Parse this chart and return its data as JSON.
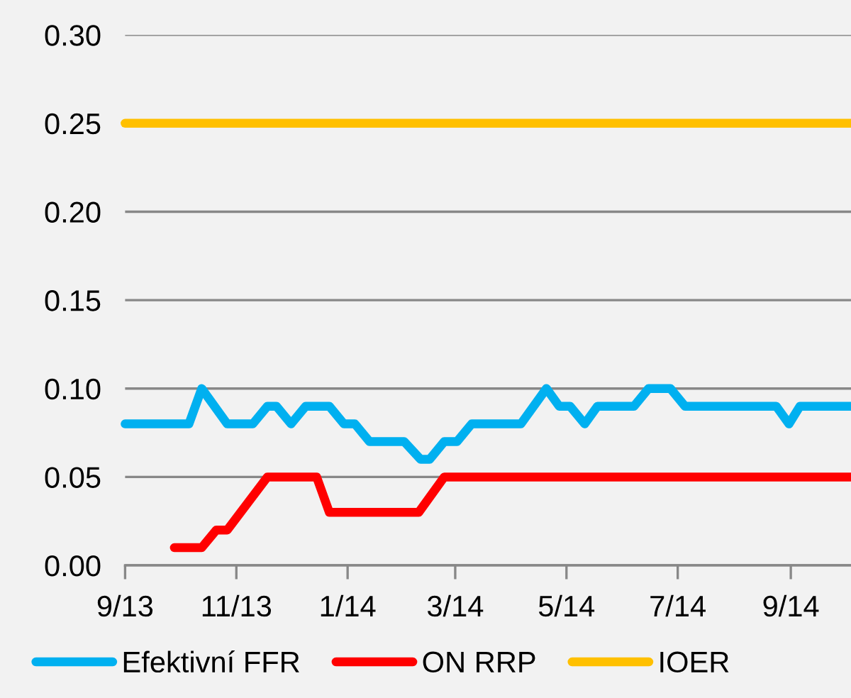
{
  "chart_data": {
    "type": "line",
    "legend": "bottom",
    "grid": "y",
    "marker": "none",
    "line_style": "solid",
    "xlim": [
      "2013-09-01",
      "2014-10-04"
    ],
    "xticks": [
      {
        "value": "2013-09-01",
        "label": "9/13"
      },
      {
        "value": "2013-11-01",
        "label": "11/13"
      },
      {
        "value": "2014-01-01",
        "label": "1/14"
      },
      {
        "value": "2014-03-01",
        "label": "3/14"
      },
      {
        "value": "2014-05-01",
        "label": "5/14"
      },
      {
        "value": "2014-07-01",
        "label": "7/14"
      },
      {
        "value": "2014-09-01",
        "label": "9/14"
      }
    ],
    "ylim": [
      0,
      0.3
    ],
    "yticks": [
      {
        "value": 0,
        "label": "0.00"
      },
      {
        "value": 0.05,
        "label": "0.05"
      },
      {
        "value": 0.1,
        "label": "0.10"
      },
      {
        "value": 0.15,
        "label": "0.15"
      },
      {
        "value": 0.2,
        "label": "0.20"
      },
      {
        "value": 0.25,
        "label": "0.25"
      },
      {
        "value": 0.3,
        "label": "0.30"
      }
    ],
    "series": [
      {
        "name": "Efektivní FFR",
        "color": "#00b0f0",
        "x": [
          "2013-09-01",
          "2013-10-06",
          "2013-10-13",
          "2013-10-27",
          "2013-11-10",
          "2013-11-18",
          "2013-11-23",
          "2013-12-01",
          "2013-12-09",
          "2013-12-22",
          "2013-12-30",
          "2014-01-05",
          "2014-01-13",
          "2014-02-01",
          "2014-02-10",
          "2014-02-15",
          "2014-02-23",
          "2014-03-02",
          "2014-03-10",
          "2014-04-06",
          "2014-04-20",
          "2014-04-27",
          "2014-05-03",
          "2014-05-11",
          "2014-05-18",
          "2014-06-07",
          "2014-06-15",
          "2014-06-27",
          "2014-07-05",
          "2014-08-24",
          "2014-08-31",
          "2014-09-06",
          "2014-10-04"
        ],
        "values": [
          0.08,
          0.08,
          0.1,
          0.08,
          0.08,
          0.09,
          0.09,
          0.08,
          0.09,
          0.09,
          0.08,
          0.08,
          0.07,
          0.07,
          0.06,
          0.06,
          0.07,
          0.07,
          0.08,
          0.08,
          0.1,
          0.09,
          0.09,
          0.08,
          0.09,
          0.09,
          0.1,
          0.1,
          0.09,
          0.09,
          0.08,
          0.09,
          0.09
        ]
      },
      {
        "name": "ON RRP",
        "color": "#ff0000",
        "x": [
          "2013-09-28",
          "2013-10-13",
          "2013-10-21",
          "2013-10-27",
          "2013-11-18",
          "2013-12-15",
          "2013-12-22",
          "2014-02-09",
          "2014-02-23",
          "2014-10-04"
        ],
        "values": [
          0.01,
          0.01,
          0.02,
          0.02,
          0.05,
          0.05,
          0.03,
          0.03,
          0.05,
          0.05
        ]
      },
      {
        "name": "IOER",
        "color": "#ffc000",
        "x": [
          "2013-09-01",
          "2014-10-04"
        ],
        "values": [
          0.25,
          0.25
        ]
      }
    ]
  }
}
